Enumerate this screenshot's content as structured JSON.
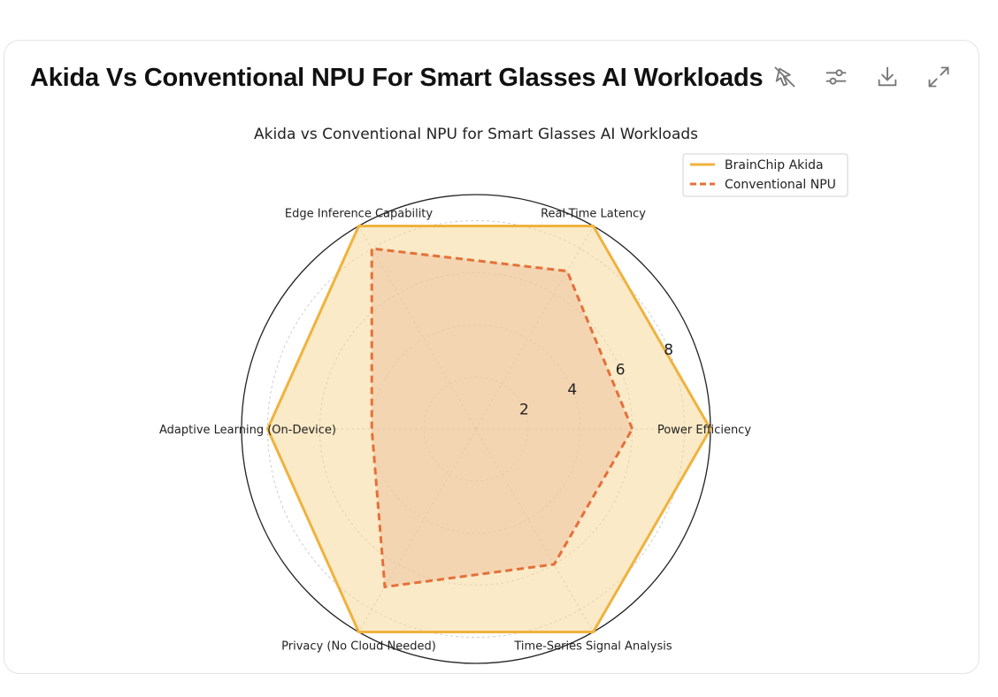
{
  "header": {
    "title": "Akida Vs Conventional NPU For Smart Glasses AI Workloads"
  },
  "toolbar": {
    "icons": [
      "unpin-icon",
      "sliders-icon",
      "download-icon",
      "expand-icon"
    ]
  },
  "colors": {
    "akida": "#f0b23e",
    "akida_fill": "#f6d999",
    "npu": "#e5703a",
    "npu_fill": "#eec3a0"
  },
  "chart_data": {
    "type": "radar",
    "title": "Akida vs Conventional NPU for Smart Glasses AI Workloads",
    "categories": [
      "Power Efficiency",
      "Real-Time Latency",
      "Edge Inference Capability",
      "Adaptive Learning (On-Device)",
      "Privacy (No Cloud Needed)",
      "Time-Series Signal Analysis"
    ],
    "series": [
      {
        "name": "BrainChip Akida",
        "values": [
          9,
          9,
          9,
          8,
          9,
          9
        ],
        "line_style": "solid"
      },
      {
        "name": "Conventional NPU",
        "values": [
          6,
          7,
          8,
          4,
          7,
          6
        ],
        "line_style": "dashed"
      }
    ],
    "rlim": [
      0,
      9
    ],
    "r_ticks": [
      "2",
      "4",
      "6",
      "8"
    ],
    "grid": true,
    "legend_position": "top-right"
  }
}
